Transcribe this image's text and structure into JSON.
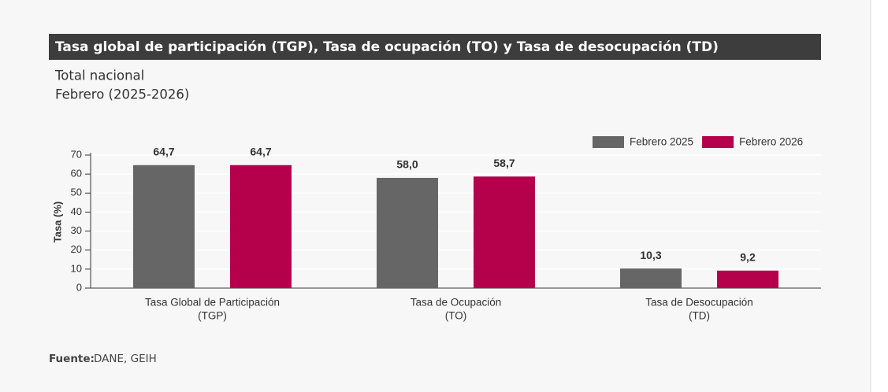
{
  "chart_data": {
    "type": "bar",
    "title": "Tasa global de participación (TGP), Tasa de ocupación (TO) y Tasa de desocupación (TD)",
    "subtitle": [
      "Total nacional",
      "Febrero (2025-2026)"
    ],
    "y_label": "Tasa (%)",
    "categories": [
      [
        "Tasa Global de Participación",
        "(TGP)"
      ],
      [
        "Tasa de Ocupación",
        "(TO)"
      ],
      [
        "Tasa de Desocupación",
        "(TD)"
      ]
    ],
    "series": [
      {
        "name": "Febrero 2025",
        "color": "#666666",
        "values": [
          64.7,
          58.0,
          10.3
        ],
        "value_labels": [
          "64,7",
          "58,0",
          "10,3"
        ]
      },
      {
        "name": "Febrero 2026",
        "color": "#b5004b",
        "values": [
          64.7,
          58.7,
          9.2
        ],
        "value_labels": [
          "64,7",
          "58,7",
          "9,2"
        ]
      }
    ],
    "ylim": [
      0,
      70
    ],
    "yticks": [
      0,
      10,
      20,
      30,
      40,
      50,
      60,
      70
    ],
    "grid": true,
    "legend": "top-right",
    "source": {
      "label": "Fuente:",
      "text": "DANE, GEIH"
    }
  }
}
